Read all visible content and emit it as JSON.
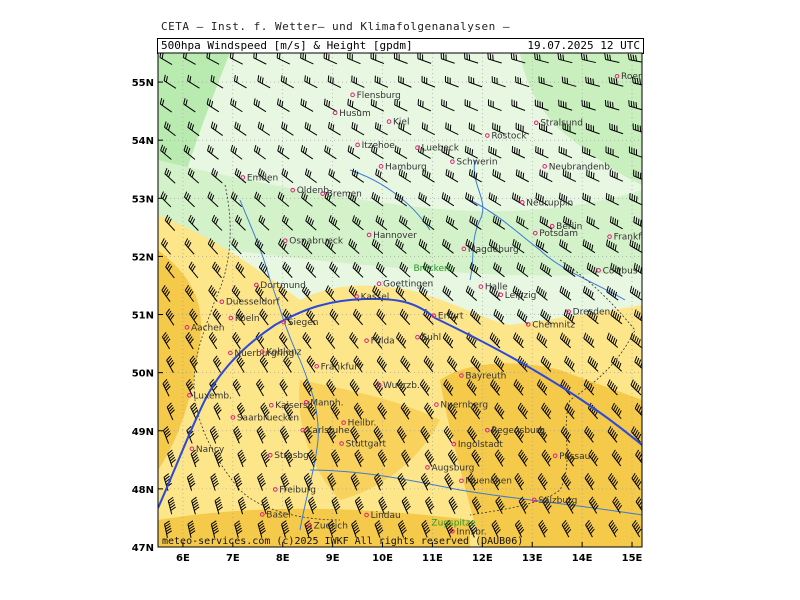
{
  "header": {
    "title": "CETA — Inst. f. Wetter— und Klimafolgenanalysen —",
    "variable": "500hpa Windspeed [m/s] & Height [gpdm]",
    "datetime": "19.07.2025 12 UTC"
  },
  "map": {
    "lon_range": [
      5.5,
      15.2
    ],
    "lat_range": [
      47.0,
      55.5
    ],
    "lon_ticks": [
      "6E",
      "7E",
      "8E",
      "9E",
      "10E",
      "11E",
      "12E",
      "13E",
      "14E",
      "15E"
    ],
    "lat_ticks": [
      "47N",
      "48N",
      "49N",
      "50N",
      "51N",
      "52N",
      "53N",
      "54N",
      "55N"
    ],
    "footer": "meteo-services.com (c)2025 IWKF All rights reserved (DAUB06)",
    "colors": {
      "strong_wind": "#f5c94a",
      "medium_wind": "#fde68a",
      "light_wind": "#e8f7e2",
      "pale_green": "#d4f2c9",
      "green": "#b9ebb0",
      "contour": "#2d49d9",
      "river": "#3a7bd5"
    },
    "height_contour_label": "552",
    "cities": [
      {
        "name": "Roenne",
        "lon": 14.7,
        "lat": 55.1
      },
      {
        "name": "Flensburg",
        "lon": 9.4,
        "lat": 54.78
      },
      {
        "name": "Husum",
        "lon": 9.05,
        "lat": 54.47
      },
      {
        "name": "Kiel",
        "lon": 10.13,
        "lat": 54.32
      },
      {
        "name": "Rostock",
        "lon": 12.1,
        "lat": 54.08
      },
      {
        "name": "Stralsund",
        "lon": 13.08,
        "lat": 54.3
      },
      {
        "name": "Itzehoe",
        "lon": 9.5,
        "lat": 53.92
      },
      {
        "name": "Luebeck",
        "lon": 10.7,
        "lat": 53.87
      },
      {
        "name": "Schwerin",
        "lon": 11.4,
        "lat": 53.63
      },
      {
        "name": "Neubrandenb.",
        "lon": 13.25,
        "lat": 53.55
      },
      {
        "name": "Hamburg",
        "lon": 9.97,
        "lat": 53.55
      },
      {
        "name": "Emden",
        "lon": 7.2,
        "lat": 53.36
      },
      {
        "name": "Oldenb.",
        "lon": 8.2,
        "lat": 53.14
      },
      {
        "name": "Bremen",
        "lon": 8.8,
        "lat": 53.08
      },
      {
        "name": "Neuruppin",
        "lon": 12.8,
        "lat": 52.93
      },
      {
        "name": "Berlin",
        "lon": 13.4,
        "lat": 52.52
      },
      {
        "name": "Potsdam",
        "lon": 13.06,
        "lat": 52.4
      },
      {
        "name": "Frankfurt/O.",
        "lon": 14.55,
        "lat": 52.34
      },
      {
        "name": "Osnabrueck",
        "lon": 8.05,
        "lat": 52.27
      },
      {
        "name": "Hannover",
        "lon": 9.73,
        "lat": 52.37
      },
      {
        "name": "Magdeburg",
        "lon": 11.63,
        "lat": 52.13
      },
      {
        "name": "Cottbus",
        "lon": 14.33,
        "lat": 51.76
      },
      {
        "name": "Goettingen",
        "lon": 9.93,
        "lat": 51.53
      },
      {
        "name": "Dortmund",
        "lon": 7.47,
        "lat": 51.51
      },
      {
        "name": "Halle",
        "lon": 11.97,
        "lat": 51.48
      },
      {
        "name": "Leipzig",
        "lon": 12.37,
        "lat": 51.34
      },
      {
        "name": "Kassel",
        "lon": 9.48,
        "lat": 51.31
      },
      {
        "name": "Duesseldorf",
        "lon": 6.78,
        "lat": 51.22
      },
      {
        "name": "Dresden",
        "lon": 13.73,
        "lat": 51.05
      },
      {
        "name": "Erfurt",
        "lon": 11.03,
        "lat": 50.98
      },
      {
        "name": "Koeln",
        "lon": 6.96,
        "lat": 50.94
      },
      {
        "name": "Siegen",
        "lon": 8.02,
        "lat": 50.87
      },
      {
        "name": "Chemnitz",
        "lon": 12.92,
        "lat": 50.83
      },
      {
        "name": "Aachen",
        "lon": 6.08,
        "lat": 50.78
      },
      {
        "name": "Suhl",
        "lon": 10.7,
        "lat": 50.61
      },
      {
        "name": "Fulda",
        "lon": 9.68,
        "lat": 50.55
      },
      {
        "name": "Nuerburgring",
        "lon": 6.95,
        "lat": 50.34
      },
      {
        "name": "Koblenz",
        "lon": 7.59,
        "lat": 50.36
      },
      {
        "name": "Frankfurt",
        "lon": 8.68,
        "lat": 50.11
      },
      {
        "name": "Bayreuth",
        "lon": 11.58,
        "lat": 49.95
      },
      {
        "name": "Wuerzb.",
        "lon": 9.93,
        "lat": 49.79
      },
      {
        "name": "Luxemb.",
        "lon": 6.13,
        "lat": 49.61
      },
      {
        "name": "Kaisersl.",
        "lon": 7.77,
        "lat": 49.44
      },
      {
        "name": "Nuernberg",
        "lon": 11.08,
        "lat": 49.45
      },
      {
        "name": "Mannh.",
        "lon": 8.47,
        "lat": 49.49
      },
      {
        "name": "Saarbruecken",
        "lon": 7.0,
        "lat": 49.23
      },
      {
        "name": "Regensburg",
        "lon": 12.1,
        "lat": 49.01
      },
      {
        "name": "Heilbr.",
        "lon": 9.22,
        "lat": 49.14
      },
      {
        "name": "Karlsruhe",
        "lon": 8.4,
        "lat": 49.01
      },
      {
        "name": "Nancy",
        "lon": 6.18,
        "lat": 48.69
      },
      {
        "name": "Ingolstadt",
        "lon": 11.43,
        "lat": 48.77
      },
      {
        "name": "Stuttgart",
        "lon": 9.18,
        "lat": 48.78
      },
      {
        "name": "Passau",
        "lon": 13.46,
        "lat": 48.57
      },
      {
        "name": "Strasbg.",
        "lon": 7.75,
        "lat": 48.58
      },
      {
        "name": "Augsburg",
        "lon": 10.9,
        "lat": 48.37
      },
      {
        "name": "Muenchen",
        "lon": 11.58,
        "lat": 48.14
      },
      {
        "name": "Freiburg",
        "lon": 7.85,
        "lat": 47.99
      },
      {
        "name": "Salzburg",
        "lon": 13.04,
        "lat": 47.81
      },
      {
        "name": "Basel",
        "lon": 7.59,
        "lat": 47.56
      },
      {
        "name": "Zuerich",
        "lon": 8.54,
        "lat": 47.37
      },
      {
        "name": "Lindau",
        "lon": 9.68,
        "lat": 47.55
      },
      {
        "name": "Innsbr.",
        "lon": 11.4,
        "lat": 47.27
      }
    ],
    "green_labels": [
      {
        "name": "Brocken",
        "lon": 10.62,
        "lat": 51.8
      },
      {
        "name": "Zugspitze",
        "lon": 10.98,
        "lat": 47.42
      }
    ]
  }
}
